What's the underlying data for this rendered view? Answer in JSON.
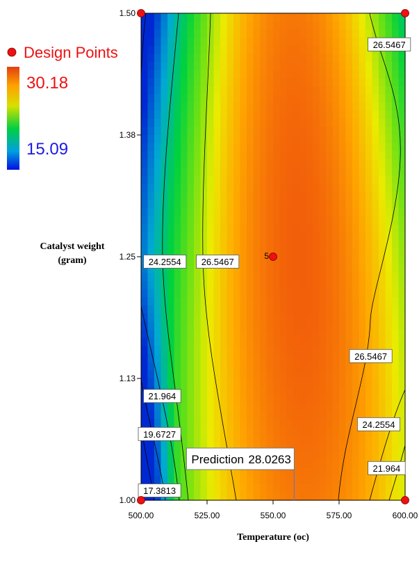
{
  "chart_data": {
    "type": "heatmap",
    "subtype": "contour",
    "xlabel": "Temperature  (oc)",
    "ylabel_lines": [
      "Catalyst weight",
      "(gram)"
    ],
    "xlim": [
      500,
      600
    ],
    "ylim": [
      1.0,
      1.5
    ],
    "xticks": [
      {
        "value": 500,
        "label": "500.00"
      },
      {
        "value": 525,
        "label": "525.00"
      },
      {
        "value": 550,
        "label": "550.00"
      },
      {
        "value": 575,
        "label": "575.00"
      },
      {
        "value": 600,
        "label": "600.00"
      }
    ],
    "yticks": [
      {
        "value": 1.0,
        "label": "1.00"
      },
      {
        "value": 1.125,
        "label": "1.13"
      },
      {
        "value": 1.25,
        "label": "1.25"
      },
      {
        "value": 1.375,
        "label": "1.38"
      },
      {
        "value": 1.5,
        "label": "1.50"
      }
    ],
    "color_scale": {
      "min": 15.09,
      "max": 30.18,
      "min_label": "15.09",
      "max_label": "30.18"
    },
    "legend": {
      "title": "Design Points",
      "title_color": "#ee1111",
      "max_color": "#ee1111",
      "min_color": "#1a1ae6"
    },
    "design_points": [
      {
        "x": 500,
        "y": 1.5,
        "label": ""
      },
      {
        "x": 600,
        "y": 1.5,
        "label": ""
      },
      {
        "x": 550,
        "y": 1.25,
        "label": "5"
      },
      {
        "x": 500,
        "y": 1.0,
        "label": ""
      },
      {
        "x": 600,
        "y": 1.0,
        "label": ""
      }
    ],
    "contour_labels": [
      {
        "text": "26.5467",
        "x": 594,
        "y": 1.468
      },
      {
        "text": "24.2554",
        "x": 509,
        "y": 1.245
      },
      {
        "text": "26.5467",
        "x": 529,
        "y": 1.245
      },
      {
        "text": "26.5467",
        "x": 587,
        "y": 1.148
      },
      {
        "text": "21.964",
        "x": 508,
        "y": 1.107
      },
      {
        "text": "19.6727",
        "x": 507,
        "y": 1.068
      },
      {
        "text": "24.2554",
        "x": 590,
        "y": 1.078
      },
      {
        "text": "21.964",
        "x": 593,
        "y": 1.033
      },
      {
        "text": "17.3813",
        "x": 507,
        "y": 1.01
      }
    ],
    "prediction": {
      "label": "Prediction",
      "value": "28.0263",
      "x": 558,
      "y": 1.0
    }
  }
}
